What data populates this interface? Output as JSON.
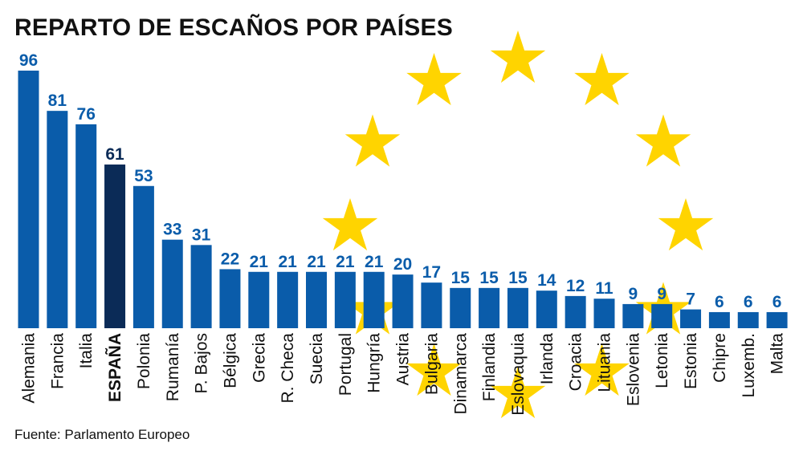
{
  "chart_data": {
    "type": "bar",
    "title": "REPARTO DE ESCAÑOS POR PAÍSES",
    "source": "Fuente: Parlamento Europeo",
    "categories": [
      "Alemania",
      "Francia",
      "Italia",
      "ESPAÑA",
      "Polonia",
      "Rumanía",
      "P. Bajos",
      "Bélgica",
      "Grecia",
      "R. Checa",
      "Suecia",
      "Portugal",
      "Hungría",
      "Austria",
      "Bulgaria",
      "Dinamarca",
      "Finlandia",
      "Eslovaquia",
      "Irlanda",
      "Croacia",
      "Lituania",
      "Eslovenia",
      "Letonia",
      "Estonia",
      "Chipre",
      "Luxemb.",
      "Malta"
    ],
    "values": [
      96,
      81,
      76,
      61,
      53,
      33,
      31,
      22,
      21,
      21,
      21,
      21,
      21,
      20,
      17,
      15,
      15,
      15,
      14,
      12,
      11,
      9,
      9,
      7,
      6,
      6,
      6
    ],
    "highlight_category": "ESPAÑA",
    "ylim": [
      0,
      96
    ],
    "grid": false,
    "colors": {
      "bar": "#0a5caa",
      "highlight": "#0b2b57",
      "value_label": "#0a5caa",
      "star": "#ffd400"
    }
  },
  "stars_count": 12
}
